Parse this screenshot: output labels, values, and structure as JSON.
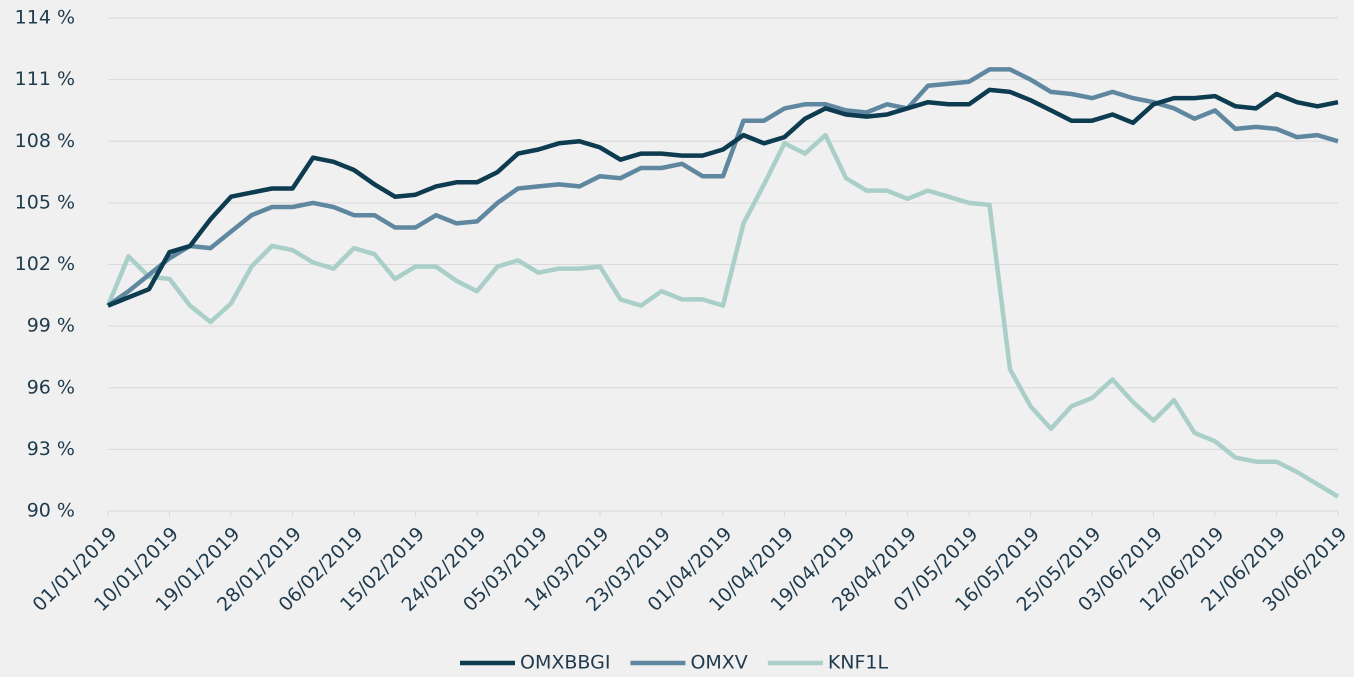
{
  "chart_data": {
    "type": "line",
    "x": [
      "2019-01-01",
      "2019-01-04",
      "2019-01-07",
      "2019-01-10",
      "2019-01-13",
      "2019-01-16",
      "2019-01-19",
      "2019-01-22",
      "2019-01-25",
      "2019-01-28",
      "2019-01-31",
      "2019-02-03",
      "2019-02-06",
      "2019-02-09",
      "2019-02-12",
      "2019-02-15",
      "2019-02-18",
      "2019-02-21",
      "2019-02-24",
      "2019-02-27",
      "2019-03-02",
      "2019-03-05",
      "2019-03-08",
      "2019-03-11",
      "2019-03-14",
      "2019-03-17",
      "2019-03-20",
      "2019-03-23",
      "2019-03-26",
      "2019-03-29",
      "2019-04-01",
      "2019-04-04",
      "2019-04-07",
      "2019-04-10",
      "2019-04-13",
      "2019-04-16",
      "2019-04-19",
      "2019-04-22",
      "2019-04-25",
      "2019-04-28",
      "2019-05-01",
      "2019-05-04",
      "2019-05-07",
      "2019-05-10",
      "2019-05-13",
      "2019-05-16",
      "2019-05-19",
      "2019-05-22",
      "2019-05-25",
      "2019-05-28",
      "2019-05-31",
      "2019-06-03",
      "2019-06-06",
      "2019-06-09",
      "2019-06-12",
      "2019-06-15",
      "2019-06-18",
      "2019-06-21",
      "2019-06-24",
      "2019-06-27",
      "2019-06-30"
    ],
    "series": [
      {
        "name": "OMXBBGI",
        "color": "#0d3b4f",
        "values": [
          100,
          100.4,
          100.8,
          102.6,
          102.9,
          104.2,
          105.3,
          105.5,
          105.7,
          105.7,
          107.2,
          107,
          106.6,
          105.9,
          105.3,
          105.4,
          105.8,
          106,
          106,
          106.5,
          107.4,
          107.6,
          107.9,
          108,
          107.7,
          107.1,
          107.4,
          107.4,
          107.3,
          107.3,
          107.6,
          108.3,
          107.9,
          108.2,
          109.1,
          109.6,
          109.3,
          109.2,
          109.3,
          109.6,
          109.9,
          109.8,
          109.8,
          110.5,
          110.4,
          110,
          109.5,
          109,
          109,
          109.3,
          108.9,
          109.8,
          110.1,
          110.1,
          110.2,
          109.7,
          109.6,
          110.3,
          109.9,
          109.7,
          109.9
        ]
      },
      {
        "name": "OMXV",
        "color": "#5f88a0",
        "values": [
          100,
          100.7,
          101.5,
          102.3,
          102.9,
          102.8,
          103.6,
          104.4,
          104.8,
          104.8,
          105,
          104.8,
          104.4,
          104.4,
          103.8,
          103.8,
          104.4,
          104,
          104.1,
          105,
          105.7,
          105.8,
          105.9,
          105.8,
          106.3,
          106.2,
          106.7,
          106.7,
          106.9,
          106.3,
          106.3,
          109,
          109,
          109.6,
          109.8,
          109.8,
          109.5,
          109.4,
          109.8,
          109.6,
          110.7,
          110.8,
          110.9,
          111.5,
          111.5,
          111,
          110.4,
          110.3,
          110.1,
          110.4,
          110.1,
          109.9,
          109.6,
          109.1,
          109.5,
          108.6,
          108.7,
          108.6,
          108.2,
          108.3,
          108
        ]
      },
      {
        "name": "KNF1L",
        "color": "#a9cfc8",
        "values": [
          100,
          102.4,
          101.4,
          101.3,
          100,
          99.2,
          100.1,
          101.9,
          102.9,
          102.7,
          102.1,
          101.8,
          102.8,
          102.5,
          101.3,
          101.9,
          101.9,
          101.2,
          100.7,
          101.9,
          102.2,
          101.6,
          101.8,
          101.8,
          101.9,
          100.3,
          100,
          100.7,
          100.3,
          100.3,
          100,
          104,
          105.9,
          107.9,
          107.4,
          108.3,
          106.2,
          105.6,
          105.6,
          105.2,
          105.6,
          105.3,
          105,
          104.9,
          96.9,
          95.1,
          94,
          95.1,
          95.5,
          96.4,
          95.3,
          94.4,
          95.4,
          93.8,
          93.4,
          92.6,
          92.4,
          92.4,
          91.9,
          91.3,
          90.7
        ]
      }
    ],
    "xlim": [
      "2019-01-01",
      "2019-06-30"
    ],
    "xticks": [
      {
        "value": "2019-01-01",
        "label": "01/01/2019"
      },
      {
        "value": "2019-01-10",
        "label": "10/01/2019"
      },
      {
        "value": "2019-01-19",
        "label": "19/01/2019"
      },
      {
        "value": "2019-01-28",
        "label": "28/01/2019"
      },
      {
        "value": "2019-02-06",
        "label": "06/02/2019"
      },
      {
        "value": "2019-02-15",
        "label": "15/02/2019"
      },
      {
        "value": "2019-02-24",
        "label": "24/02/2019"
      },
      {
        "value": "2019-03-05",
        "label": "05/03/2019"
      },
      {
        "value": "2019-03-14",
        "label": "14/03/2019"
      },
      {
        "value": "2019-03-23",
        "label": "23/03/2019"
      },
      {
        "value": "2019-04-01",
        "label": "01/04/2019"
      },
      {
        "value": "2019-04-10",
        "label": "10/04/2019"
      },
      {
        "value": "2019-04-19",
        "label": "19/04/2019"
      },
      {
        "value": "2019-04-28",
        "label": "28/04/2019"
      },
      {
        "value": "2019-05-07",
        "label": "07/05/2019"
      },
      {
        "value": "2019-05-16",
        "label": "16/05/2019"
      },
      {
        "value": "2019-05-25",
        "label": "25/05/2019"
      },
      {
        "value": "2019-06-03",
        "label": "03/06/2019"
      },
      {
        "value": "2019-06-12",
        "label": "12/06/2019"
      },
      {
        "value": "2019-06-21",
        "label": "21/06/2019"
      },
      {
        "value": "2019-06-30",
        "label": "30/06/2019"
      }
    ],
    "ylim": [
      90,
      114
    ],
    "yticks": [
      {
        "value": 90,
        "label": "90 %"
      },
      {
        "value": 93,
        "label": "93 %"
      },
      {
        "value": 96,
        "label": "96 %"
      },
      {
        "value": 99,
        "label": "99 %"
      },
      {
        "value": 102,
        "label": "102 %"
      },
      {
        "value": 105,
        "label": "105 %"
      },
      {
        "value": 108,
        "label": "108 %"
      },
      {
        "value": 111,
        "label": "111 %"
      },
      {
        "value": 114,
        "label": "114 %"
      }
    ],
    "grid": true,
    "legend": "bottom"
  }
}
